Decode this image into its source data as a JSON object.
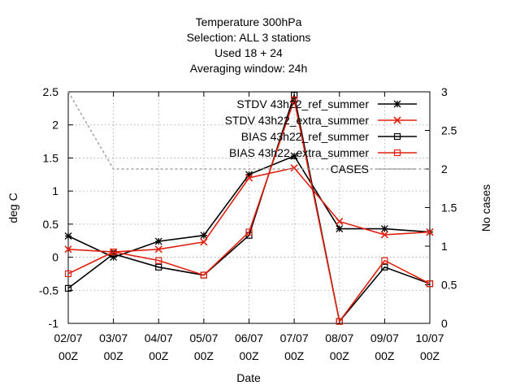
{
  "chart_data": {
    "type": "line",
    "title_lines": [
      "Temperature 300hPa",
      "Selection: ALL       3 stations",
      "Used  18  + 24",
      "Averaging window: 24h"
    ],
    "xlabel": "Date",
    "ylabel": "deg C",
    "y2label": "No cases",
    "x": [
      "02/07 00Z",
      "03/07 00Z",
      "04/07 00Z",
      "05/07 00Z",
      "06/07 00Z",
      "07/07 00Z",
      "08/07 00Z",
      "09/07 00Z",
      "10/07 00Z"
    ],
    "ylim": [
      -1,
      2.5
    ],
    "yticks": [
      "-1",
      "-0.5",
      "0",
      "0.5",
      "1",
      "1.5",
      "2",
      "2.5"
    ],
    "y2lim": [
      0,
      3
    ],
    "y2ticks": [
      "0",
      "0.5",
      "1",
      "1.5",
      "2",
      "2.5",
      "3"
    ],
    "grid": true,
    "legend_position": "top-right",
    "series": [
      {
        "name": "STDV 43h22_ref_summer",
        "axis": "y",
        "color": "#000000",
        "marker": "star",
        "values": [
          0.32,
          0.0,
          0.24,
          0.33,
          1.25,
          1.53,
          0.43,
          0.43,
          0.38
        ]
      },
      {
        "name": "STDV 43h22_extra_summer",
        "axis": "y",
        "color": "#e02010",
        "marker": "x",
        "values": [
          0.12,
          0.08,
          0.12,
          0.23,
          1.2,
          1.35,
          0.54,
          0.34,
          0.38
        ]
      },
      {
        "name": "BIAS 43h22_ref_summer",
        "axis": "y",
        "color": "#000000",
        "marker": "open-square",
        "values": [
          -0.47,
          0.05,
          -0.15,
          -0.27,
          0.33,
          2.45,
          -0.97,
          -0.15,
          -0.4
        ]
      },
      {
        "name": "BIAS 43h22_extra_summer",
        "axis": "y",
        "color": "#e02010",
        "marker": "open-square",
        "values": [
          -0.25,
          0.08,
          -0.05,
          -0.27,
          0.38,
          2.38,
          -0.97,
          -0.05,
          -0.4
        ]
      },
      {
        "name": "CASES",
        "axis": "y2",
        "color": "#a0a0a0",
        "marker": "none",
        "dashed": true,
        "values": [
          3,
          2,
          2,
          2,
          2,
          2,
          2,
          2,
          2
        ]
      }
    ]
  }
}
